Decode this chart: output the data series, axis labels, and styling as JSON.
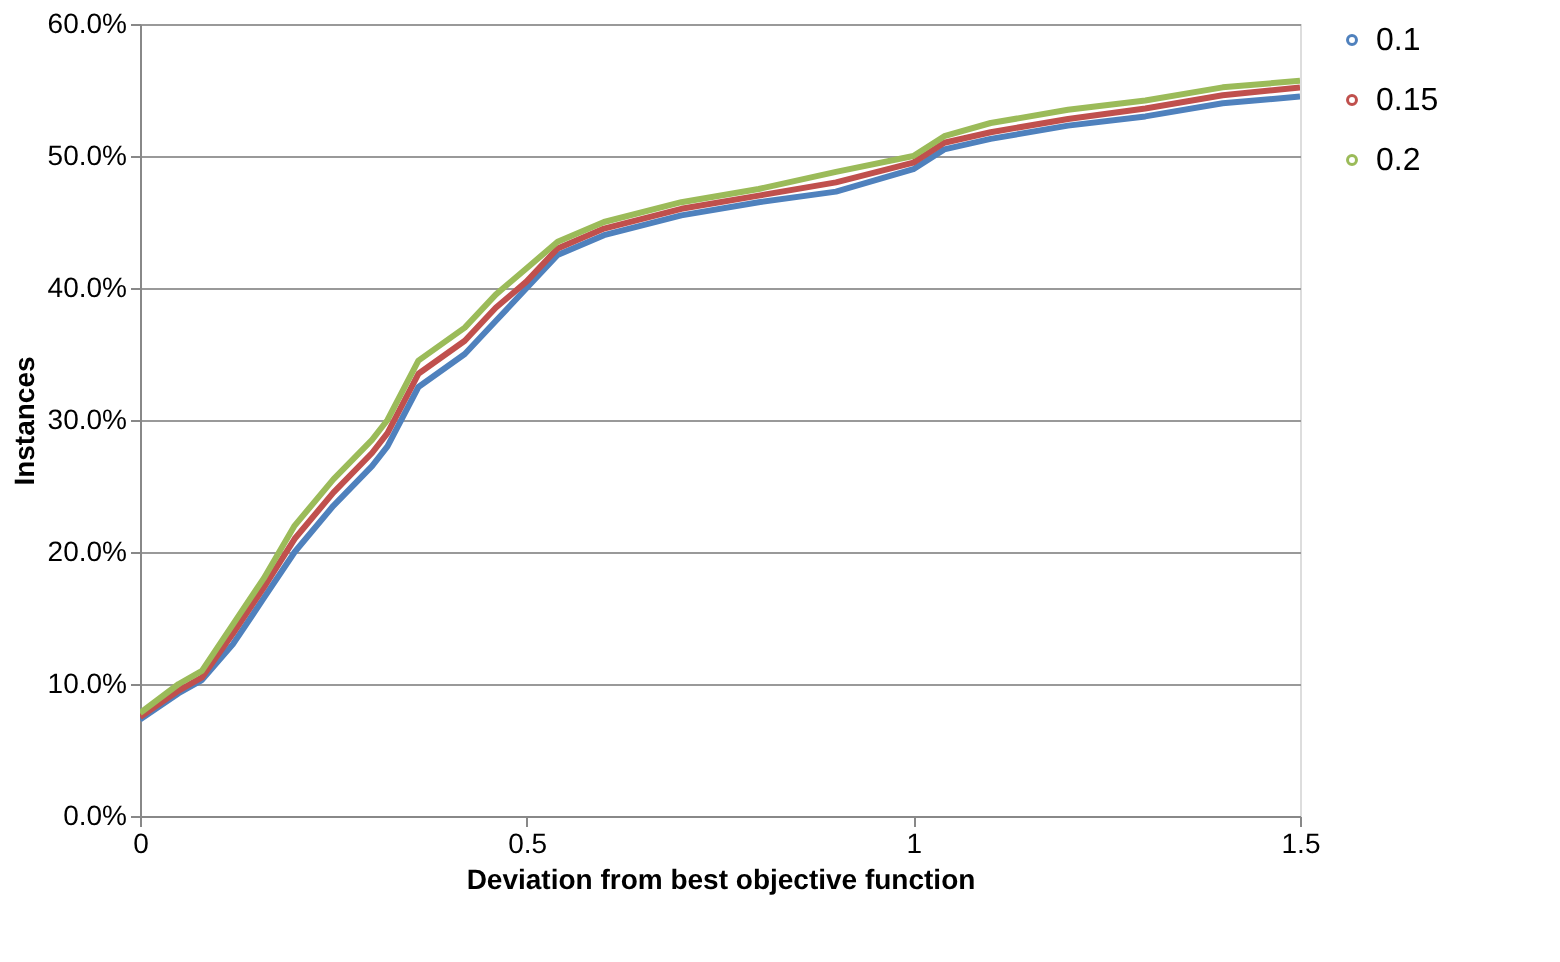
{
  "chart_data": {
    "type": "line",
    "xlabel": "Deviation from best objective function",
    "ylabel": "Instances",
    "xlim": [
      0,
      1.5
    ],
    "xticks": [
      0,
      0.5,
      1,
      1.5
    ],
    "ylim": [
      0,
      60
    ],
    "yticks": [
      {
        "value": 0,
        "label": "0.0%"
      },
      {
        "value": 10,
        "label": "10.0%"
      },
      {
        "value": 20,
        "label": "20.0%"
      },
      {
        "value": 30,
        "label": "30.0%"
      },
      {
        "value": 40,
        "label": "40.0%"
      },
      {
        "value": 50,
        "label": "50.0%"
      },
      {
        "value": 60,
        "label": "60.0%"
      }
    ],
    "grid": "y",
    "legend": "right",
    "marker": "none",
    "line_style": "solid",
    "x": [
      0,
      0.05,
      0.08,
      0.12,
      0.16,
      0.2,
      0.25,
      0.3,
      0.32,
      0.36,
      0.42,
      0.46,
      0.5,
      0.54,
      0.6,
      0.7,
      0.8,
      0.9,
      1.0,
      1.04,
      1.1,
      1.2,
      1.3,
      1.4,
      1.5
    ],
    "series": [
      {
        "name": "0.1",
        "color": "#4f81bd",
        "values": [
          7.3,
          9.3,
          10.3,
          13,
          16.5,
          20,
          23.5,
          26.5,
          28,
          32.5,
          35,
          37.5,
          40,
          42.5,
          44,
          45.5,
          46.5,
          47.3,
          49,
          50.5,
          51.3,
          52.3,
          53,
          54,
          54.5
        ]
      },
      {
        "name": "0.15",
        "color": "#c0504d",
        "values": [
          7.5,
          9.5,
          10.5,
          13.8,
          17.3,
          21,
          24.5,
          27.5,
          29,
          33.5,
          36,
          38.5,
          40.5,
          43,
          44.5,
          46,
          47,
          48,
          49.5,
          51,
          51.8,
          52.8,
          53.6,
          54.6,
          55.2
        ]
      },
      {
        "name": "0.2",
        "color": "#9bbb59",
        "values": [
          7.8,
          10,
          11,
          14.5,
          18,
          22,
          25.5,
          28.5,
          30,
          34.5,
          37,
          39.5,
          41.5,
          43.5,
          45,
          46.5,
          47.5,
          48.8,
          50,
          51.5,
          52.5,
          53.5,
          54.2,
          55.2,
          55.7
        ]
      }
    ]
  }
}
